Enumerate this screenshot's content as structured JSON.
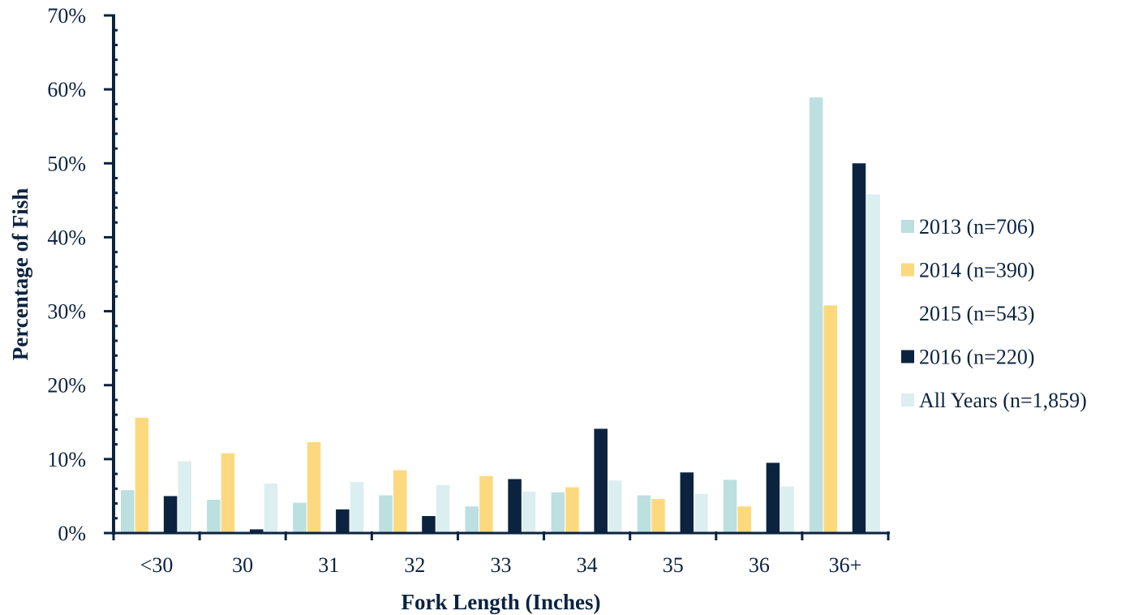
{
  "chart_data": {
    "type": "bar",
    "title": "",
    "xlabel": "Fork Length (Inches)",
    "ylabel": "Percentage of Fish",
    "categories": [
      "<30",
      "30",
      "31",
      "32",
      "33",
      "34",
      "35",
      "36",
      "36+"
    ],
    "ylim": [
      0,
      70
    ],
    "yticks": [
      "0%",
      "10%",
      "20%",
      "30%",
      "40%",
      "50%",
      "60%",
      "70%"
    ],
    "legend_position": "right",
    "series": [
      {
        "name": "2013 (n=706)",
        "color": "#bcdfe0",
        "values": [
          5.8,
          4.5,
          4.1,
          5.1,
          3.6,
          5.5,
          5.1,
          7.2,
          58.9
        ]
      },
      {
        "name": "2014 (n=390)",
        "color": "#fcd97e",
        "values": [
          15.6,
          10.8,
          12.3,
          8.5,
          7.7,
          6.2,
          4.6,
          3.6,
          30.8
        ]
      },
      {
        "name": "2015 (n=543)",
        "color": "#ffffff",
        "values": [
          0,
          0,
          0,
          0,
          0,
          0,
          0,
          0,
          0
        ]
      },
      {
        "name": "2016 (n=220)",
        "color": "#0c2340",
        "values": [
          5.0,
          0.5,
          3.2,
          2.3,
          7.3,
          14.1,
          8.2,
          9.5,
          50.0
        ]
      },
      {
        "name": "All Years (n=1,859)",
        "color": "#dbeef0",
        "values": [
          9.7,
          6.7,
          6.9,
          6.5,
          5.6,
          7.1,
          5.3,
          6.3,
          45.8
        ]
      }
    ]
  }
}
